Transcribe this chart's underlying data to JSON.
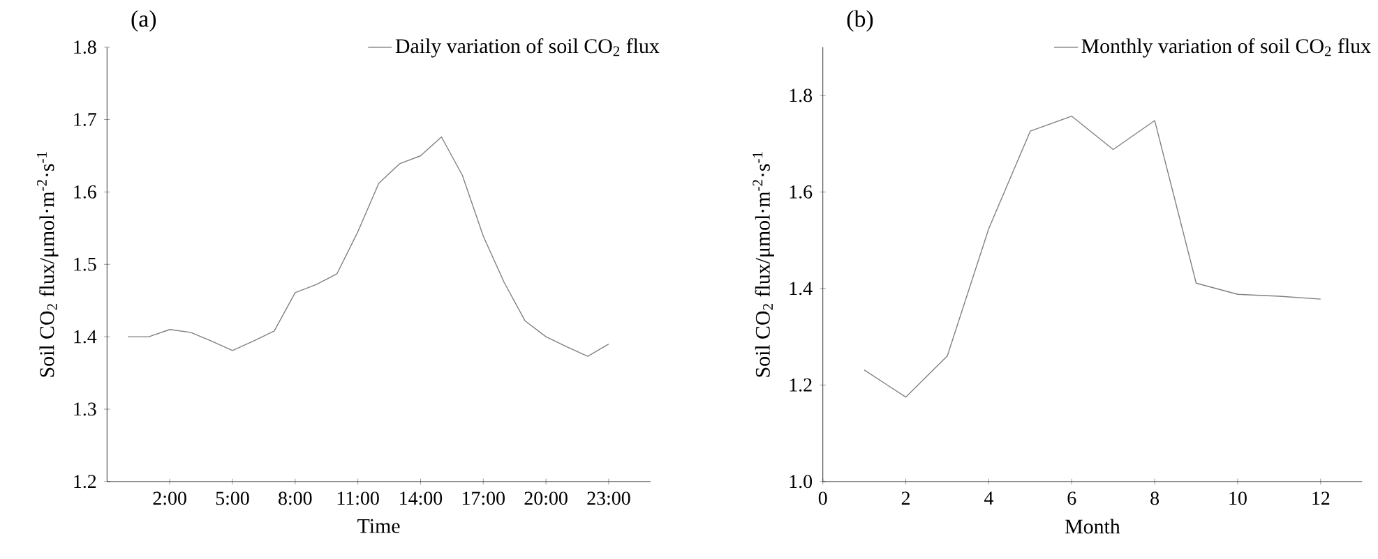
{
  "chart_data": [
    {
      "type": "line",
      "title": "(a)",
      "xlabel": "Time",
      "ylabel": "Soil CO$_{2}$ flux/μmol·m$^{-2}$·s$^{-1}$",
      "x": [
        0,
        1,
        2,
        3,
        4,
        5,
        6,
        7,
        8,
        9,
        10,
        11,
        12,
        13,
        14,
        15,
        16,
        17,
        18,
        19,
        20,
        21,
        22,
        23
      ],
      "series": [
        {
          "name": "Daily variation of soil CO$_{2}$ flux",
          "color": "#808080",
          "values": [
            1.4,
            1.4,
            1.41,
            1.406,
            1.394,
            1.381,
            1.394,
            1.408,
            1.461,
            1.472,
            1.487,
            1.545,
            1.612,
            1.639,
            1.65,
            1.676,
            1.623,
            1.539,
            1.475,
            1.422,
            1.4,
            1.386,
            1.373,
            1.39
          ]
        }
      ],
      "xlim": [
        -1,
        25
      ],
      "ylim": [
        1.2,
        1.8
      ],
      "xticks": [
        {
          "value": 2,
          "label": "2:00"
        },
        {
          "value": 5,
          "label": "5:00"
        },
        {
          "value": 8,
          "label": "8:00"
        },
        {
          "value": 11,
          "label": "11:00"
        },
        {
          "value": 14,
          "label": "14:00"
        },
        {
          "value": 17,
          "label": "17:00"
        },
        {
          "value": 20,
          "label": "20:00"
        },
        {
          "value": 23,
          "label": "23:00"
        }
      ],
      "yticks": [
        1.2,
        1.3,
        1.4,
        1.5,
        1.6,
        1.7,
        1.8
      ],
      "legend": "top right",
      "line_style": "solid"
    },
    {
      "type": "line",
      "title": "(b)",
      "xlabel": "Month",
      "ylabel": "Soil CO$_{2}$ flux/μmol·m$^{-2}$·s$^{-1}$",
      "x": [
        1,
        2,
        3,
        4,
        5,
        6,
        7,
        8,
        9,
        10,
        11,
        12
      ],
      "series": [
        {
          "name": "Monthly variation of soil CO$_{2}$ flux",
          "color": "#808080",
          "values": [
            1.231,
            1.175,
            1.26,
            1.524,
            1.726,
            1.757,
            1.688,
            1.748,
            1.411,
            1.388,
            1.384,
            1.378
          ]
        }
      ],
      "xlim": [
        0,
        13
      ],
      "ylim": [
        1.0,
        1.9
      ],
      "xticks": [
        0,
        2,
        4,
        6,
        8,
        10,
        12
      ],
      "yticks": [
        {
          "value": 1.0,
          "label": "1.0"
        },
        1.2,
        1.4,
        1.6,
        1.8
      ],
      "legend": "top right",
      "line_style": "solid"
    }
  ]
}
